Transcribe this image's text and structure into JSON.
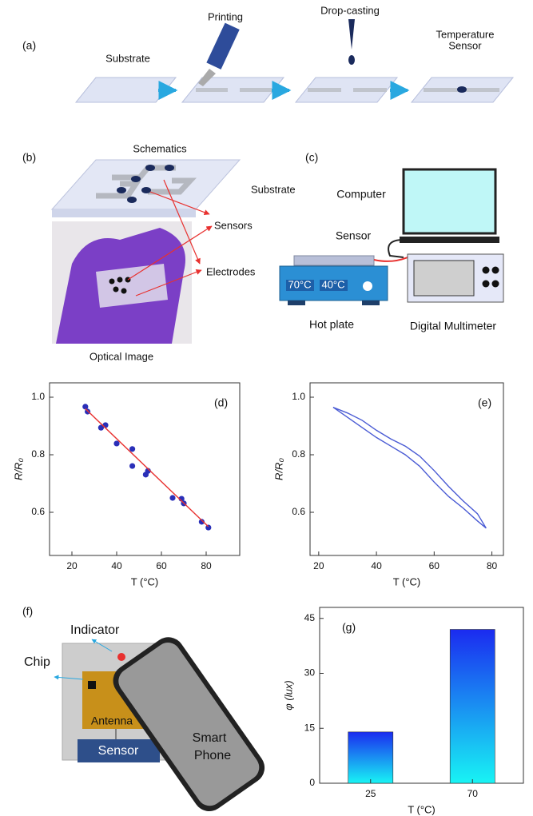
{
  "panel_a": {
    "label": "(a)",
    "substrate": "Substrate",
    "printing": "Printing",
    "drop_casting": "Drop-casting",
    "sensor_lines": [
      "Temperature",
      "Sensor"
    ]
  },
  "panel_b": {
    "label": "(b)",
    "schematics": "Schematics",
    "substrate": "Substrate",
    "sensors": "Sensors",
    "electrodes": "Electrodes",
    "optical": "Optical Image"
  },
  "panel_c": {
    "label": "(c)",
    "computer": "Computer",
    "sensor": "Sensor",
    "display_1": "70°C",
    "display_2": "40°C",
    "hot_plate": "Hot plate",
    "multimeter": "Digital Multimeter"
  },
  "panel_f": {
    "label": "(f)",
    "indicator": "Indicator",
    "chip": "Chip",
    "antenna": "Antenna",
    "sensor": "Sensor",
    "phone_lines": [
      "Smart",
      "Phone"
    ]
  },
  "chart_data": [
    {
      "type": "scatter",
      "annotation": "(d)",
      "xlabel": "T (°C)",
      "ylabel": "R/R₀",
      "xlim": [
        10,
        95
      ],
      "xticks": [
        20,
        40,
        60,
        80
      ],
      "ylim": [
        0.45,
        1.05
      ],
      "yticks": [
        0.6,
        0.8,
        {
          "value": 1,
          "label": "1.0"
        }
      ],
      "series": [
        {
          "mode": "markers",
          "color": "#2a2fb8",
          "x": [
            26,
            27,
            33,
            35,
            40,
            47,
            47,
            53,
            54,
            65,
            69,
            70,
            78,
            81
          ],
          "values": [
            0.967,
            0.95,
            0.894,
            0.903,
            0.839,
            0.82,
            0.761,
            0.731,
            0.744,
            0.65,
            0.647,
            0.631,
            0.567,
            0.547
          ]
        },
        {
          "mode": "line",
          "color": "#e8312f",
          "x": [
            26,
            81
          ],
          "values": [
            0.96,
            0.55
          ]
        }
      ]
    },
    {
      "type": "line",
      "annotation": "(e)",
      "xlabel": "T (°C)",
      "ylabel": "R/R₀",
      "xlim": [
        17,
        84
      ],
      "xticks": [
        20,
        40,
        60,
        80
      ],
      "ylim": [
        0.45,
        1.05
      ],
      "yticks": [
        0.6,
        0.8,
        {
          "value": 1,
          "label": "1.0"
        }
      ],
      "series": [
        {
          "color": "#4a5bd4",
          "x": [
            25,
            30,
            35,
            40,
            45,
            50,
            55,
            60,
            65,
            70,
            75,
            78,
            75,
            70,
            65,
            60,
            55,
            50,
            45,
            40,
            35,
            30,
            25
          ],
          "values": [
            0.965,
            0.945,
            0.92,
            0.885,
            0.855,
            0.83,
            0.795,
            0.745,
            0.69,
            0.64,
            0.595,
            0.545,
            0.57,
            0.615,
            0.655,
            0.705,
            0.76,
            0.8,
            0.83,
            0.86,
            0.895,
            0.93,
            0.965
          ]
        }
      ]
    },
    {
      "type": "bar",
      "annotation": "(g)",
      "xlabel": "T (°C)",
      "ylabel": "φ (lux)",
      "categories": [
        "25",
        "70"
      ],
      "values": [
        14,
        42
      ],
      "colors": [
        "#1b2bf0",
        "#18f4f4"
      ],
      "ylim": [
        0,
        48
      ],
      "yticks": [
        0,
        15,
        30,
        45
      ]
    }
  ]
}
